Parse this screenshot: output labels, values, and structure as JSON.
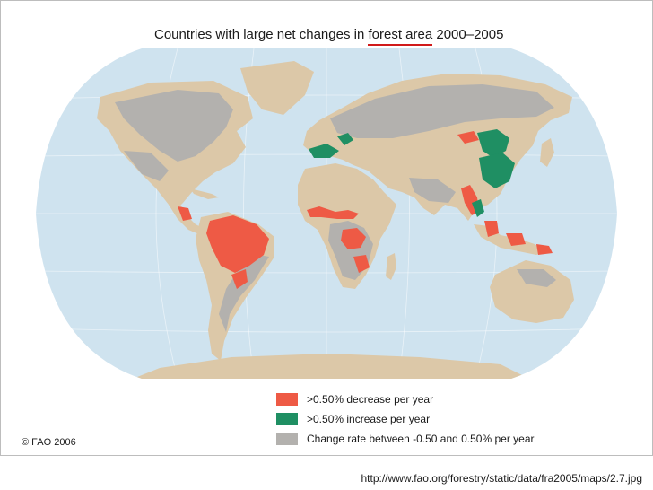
{
  "title": {
    "prefix": "Countries with large net changes in ",
    "highlight": "forest area",
    "suffix": " 2000–2005",
    "highlight_color": "#d11a1a"
  },
  "colors": {
    "ocean": "#cfe3ef",
    "land": "#dcc8a8",
    "decrease": "#ee5a45",
    "increase": "#1f8f63",
    "stable": "#b3b1ae"
  },
  "legend": [
    {
      "label": ">0.50% decrease per year",
      "color": "#ee5a45"
    },
    {
      "label": ">0.50% increase per year",
      "color": "#1f8f63"
    },
    {
      "label": "Change rate between -0.50 and 0.50% per year",
      "color": "#b3b1ae"
    }
  ],
  "copyright": "© FAO 2006",
  "source_url": "http://www.fao.org/forestry/static/data/fra2005/maps/2.7.jpg"
}
